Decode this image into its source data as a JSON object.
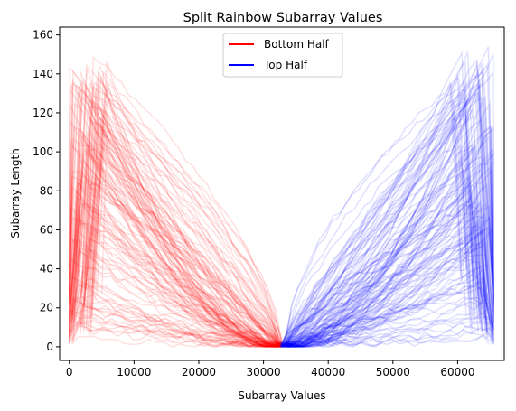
{
  "chart_data": {
    "type": "line",
    "title": "Split Rainbow Subarray Values",
    "xlabel": "Subarray Values",
    "ylabel": "Subarray Length",
    "xlim": [
      -1500,
      67200
    ],
    "ylim": [
      -7,
      164
    ],
    "xticks": [
      0,
      10000,
      20000,
      30000,
      40000,
      50000,
      60000
    ],
    "xtick_labels": [
      "0",
      "10000",
      "20000",
      "30000",
      "40000",
      "50000",
      "60000"
    ],
    "yticks": [
      0,
      20,
      40,
      60,
      80,
      100,
      120,
      140,
      160
    ],
    "ytick_labels": [
      "0",
      "20",
      "40",
      "60",
      "80",
      "100",
      "120",
      "140",
      "160"
    ],
    "grid": false,
    "legend_position": "top-center",
    "line_alpha": 0.12,
    "series": [
      {
        "name": "Bottom Half",
        "color": "#ff0000",
        "lines_count": 130,
        "x_range": [
          0,
          32767
        ],
        "peak_length_range": [
          3,
          150
        ],
        "peak_x_range": [
          0,
          7000
        ],
        "converges_to": [
          32500,
          0
        ],
        "representative_envelope": {
          "x": [
            0,
            2500,
            5000,
            8000,
            12000,
            16000,
            20000,
            24000,
            28000,
            31000,
            32767
          ],
          "y": [
            110,
            148,
            145,
            130,
            110,
            88,
            65,
            42,
            20,
            6,
            0
          ]
        }
      },
      {
        "name": "Top Half",
        "color": "#0000ff",
        "lines_count": 130,
        "x_range": [
          32768,
          65535
        ],
        "peak_length_range": [
          3,
          155
        ],
        "peak_x_range": [
          58000,
          65535
        ],
        "converges_to": [
          33000,
          0
        ],
        "representative_envelope": {
          "x": [
            32768,
            35000,
            38000,
            42000,
            46000,
            50000,
            54000,
            58000,
            61000,
            63500,
            65535
          ],
          "y": [
            0,
            8,
            22,
            42,
            64,
            87,
            108,
            132,
            148,
            152,
            100
          ]
        }
      }
    ]
  }
}
